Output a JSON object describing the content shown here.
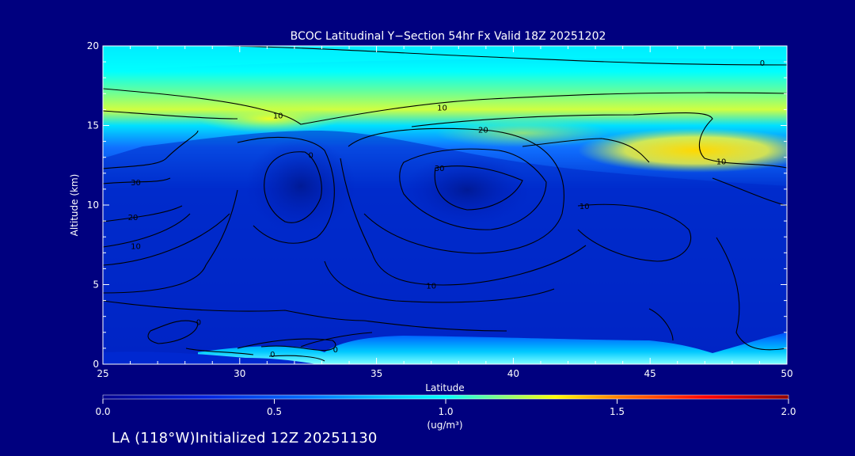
{
  "chart_data": {
    "type": "contour",
    "title": "BCOC Latitudinal Y−Section 54hr  Fx Valid 18Z 20251202",
    "xlabel": "Latitude",
    "ylabel": "Altitude (km)",
    "xlim": [
      25,
      50
    ],
    "ylim": [
      0,
      20
    ],
    "x_ticks": [
      "25",
      "30",
      "35",
      "40",
      "45",
      "50"
    ],
    "y_ticks": [
      "0",
      "5",
      "10",
      "15",
      "20"
    ],
    "colorbar": {
      "min": 0.0,
      "max": 2.0,
      "ticks": [
        "0.0",
        "0.5",
        "1.0",
        "1.5",
        "2.0"
      ],
      "unit_label": "(ug/m³)",
      "colors": [
        "#000090",
        "#0020e0",
        "#0060ff",
        "#00b0ff",
        "#00ffff",
        "#80ff80",
        "#ffff00",
        "#ff8000",
        "#ff0000",
        "#900000"
      ]
    },
    "contour_labels": [
      {
        "text": "0",
        "lat": 49.1,
        "alt": 18.9
      },
      {
        "text": "10",
        "lat": 31.4,
        "alt": 15.6
      },
      {
        "text": "10",
        "lat": 37.4,
        "alt": 16.1
      },
      {
        "text": "20",
        "lat": 38.9,
        "alt": 14.7
      },
      {
        "text": "10",
        "lat": 47.6,
        "alt": 12.7
      },
      {
        "text": "30",
        "lat": 26.2,
        "alt": 11.4
      },
      {
        "text": "0",
        "lat": 32.6,
        "alt": 13.1
      },
      {
        "text": "30",
        "lat": 37.3,
        "alt": 12.3
      },
      {
        "text": "20",
        "lat": 26.1,
        "alt": 9.2
      },
      {
        "text": "10",
        "lat": 26.2,
        "alt": 7.4
      },
      {
        "text": "10",
        "lat": 42.6,
        "alt": 9.9
      },
      {
        "text": "10",
        "lat": 37.0,
        "alt": 4.9
      },
      {
        "text": "0",
        "lat": 28.5,
        "alt": 2.6
      },
      {
        "text": "0",
        "lat": 33.5,
        "alt": 0.9
      },
      {
        "text": "0",
        "lat": 31.2,
        "alt": 0.6
      }
    ]
  },
  "footer": "LA (118°W)Initialized 12Z 20251130"
}
